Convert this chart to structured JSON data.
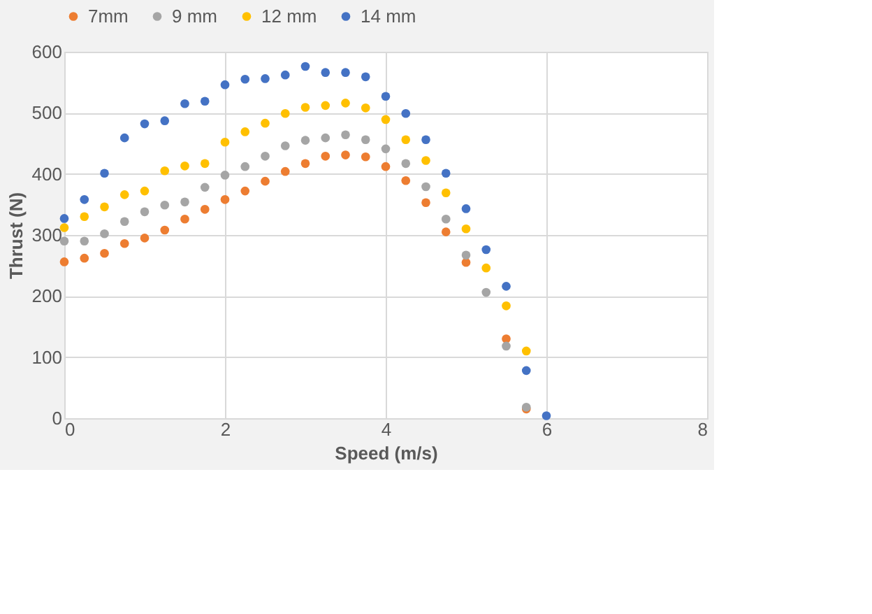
{
  "chart_data": {
    "type": "scatter",
    "xlabel": "Speed (m/s)",
    "ylabel": "Thrust (N)",
    "xlim": [
      0,
      8
    ],
    "xticks": [
      0,
      2,
      4,
      6,
      8
    ],
    "ylim": [
      0,
      600
    ],
    "yticks": [
      0,
      100,
      200,
      300,
      400,
      500,
      600
    ],
    "grid": true,
    "legend": "top",
    "marker": "circle",
    "x": [
      0,
      0.25,
      0.5,
      0.75,
      1,
      1.25,
      1.5,
      1.75,
      2,
      2.25,
      2.5,
      2.75,
      3,
      3.25,
      3.5,
      3.75,
      4,
      4.25,
      4.5,
      4.75,
      5,
      5.25,
      5.5,
      5.75,
      6
    ],
    "series": [
      {
        "name": "7mm",
        "color": "#ed7d31",
        "values": [
          256,
          262,
          270,
          286,
          295,
          308,
          326,
          342,
          358,
          372,
          388,
          404,
          417,
          429,
          431,
          428,
          412,
          389,
          353,
          305,
          255,
          null,
          130,
          15,
          null
        ]
      },
      {
        "name": "9 mm",
        "color": "#a5a5a5",
        "values": [
          290,
          290,
          302,
          322,
          338,
          349,
          354,
          378,
          398,
          412,
          429,
          446,
          455,
          459,
          464,
          456,
          441,
          417,
          379,
          326,
          267,
          206,
          118,
          18,
          null
        ]
      },
      {
        "name": "12 mm",
        "color": "#ffc000",
        "values": [
          312,
          330,
          346,
          366,
          372,
          405,
          413,
          417,
          452,
          469,
          483,
          499,
          509,
          512,
          516,
          508,
          489,
          456,
          422,
          369,
          310,
          246,
          184,
          110,
          null
        ]
      },
      {
        "name": "14 mm",
        "color": "#4472c4",
        "values": [
          327,
          358,
          401,
          459,
          482,
          487,
          515,
          519,
          546,
          555,
          556,
          562,
          576,
          566,
          566,
          559,
          527,
          499,
          456,
          401,
          343,
          276,
          216,
          78,
          4
        ]
      }
    ]
  }
}
